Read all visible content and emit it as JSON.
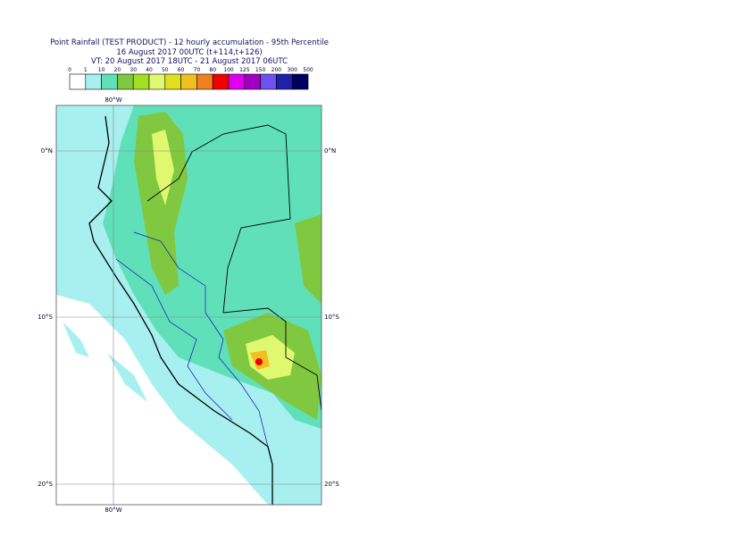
{
  "header": {
    "title": "Point Rainfall (TEST PRODUCT) - 12 hourly accumulation - 95th Percentile",
    "base_time": "16 August 2017 00UTC (t+114,t+126)",
    "valid_time": "VT: 20 August 2017 18UTC - 21 August 2017 06UTC"
  },
  "legend": {
    "labels": [
      "0",
      "1",
      "10",
      "20",
      "30",
      "40",
      "50",
      "60",
      "70",
      "80",
      "100",
      "125",
      "150",
      "200",
      "300",
      "500"
    ],
    "colors": [
      "#ffffff",
      "#a8f0f0",
      "#60e0b8",
      "#80c840",
      "#a0e020",
      "#e0f870",
      "#e0e020",
      "#f0c020",
      "#f08020",
      "#f00000",
      "#e000f0",
      "#a000c0",
      "#7050f0",
      "#2020a8",
      "#000060"
    ]
  },
  "map": {
    "top_label": "80°W",
    "bottom_label": "80°W",
    "left_labels": [
      "0°N",
      "10°S",
      "20°S"
    ],
    "right_labels": [
      "0°N",
      "10°S",
      "20°S"
    ]
  }
}
